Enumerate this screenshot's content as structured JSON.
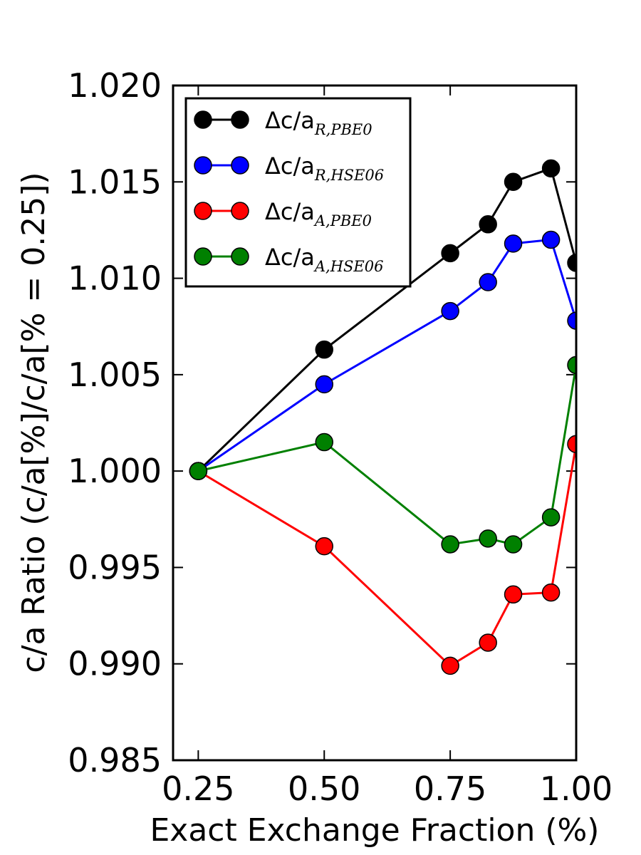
{
  "chart_data": {
    "type": "line",
    "title": "",
    "xlabel": "Exact Exchange Fraction (%)",
    "ylabel": "c/a Ratio (c/a[%]/c/a[% = 0.25])",
    "xlim": [
      0.2,
      1.0
    ],
    "ylim": [
      0.985,
      1.02
    ],
    "x_ticks": [
      0.25,
      0.5,
      0.75,
      1.0
    ],
    "x_tick_labels": [
      "0.25",
      "0.50",
      "0.75",
      "1.00"
    ],
    "y_ticks": [
      0.985,
      0.99,
      0.995,
      1.0,
      1.005,
      1.01,
      1.015,
      1.02
    ],
    "y_tick_labels": [
      "0.985",
      "0.990",
      "0.995",
      "1.000",
      "1.005",
      "1.010",
      "1.015",
      "1.020"
    ],
    "grid": false,
    "legend_position": "top-left",
    "series": [
      {
        "name": "Δc/a",
        "subscript": "R,PBE0",
        "color": "#000000",
        "x": [
          0.25,
          0.5,
          0.75,
          0.825,
          0.875,
          0.95,
          1.0
        ],
        "y": [
          1.0,
          1.0063,
          1.0113,
          1.0128,
          1.015,
          1.0157,
          1.0108
        ]
      },
      {
        "name": "Δc/a",
        "subscript": "R,HSE06",
        "color": "#0000ff",
        "x": [
          0.25,
          0.5,
          0.75,
          0.825,
          0.875,
          0.95,
          1.0
        ],
        "y": [
          1.0,
          1.0045,
          1.0083,
          1.0098,
          1.0118,
          1.012,
          1.0078
        ]
      },
      {
        "name": "Δc/a",
        "subscript": "A,PBE0",
        "color": "#ff0000",
        "x": [
          0.25,
          0.5,
          0.75,
          0.825,
          0.875,
          0.95,
          1.0
        ],
        "y": [
          1.0,
          0.9961,
          0.9899,
          0.9911,
          0.9936,
          0.9937,
          1.0014
        ]
      },
      {
        "name": "Δc/a",
        "subscript": "A,HSE06",
        "color": "#008000",
        "x": [
          0.25,
          0.5,
          0.75,
          0.825,
          0.875,
          0.95,
          1.0
        ],
        "y": [
          1.0,
          1.0015,
          0.9962,
          0.9965,
          0.9962,
          0.9976,
          1.0055
        ]
      }
    ]
  }
}
